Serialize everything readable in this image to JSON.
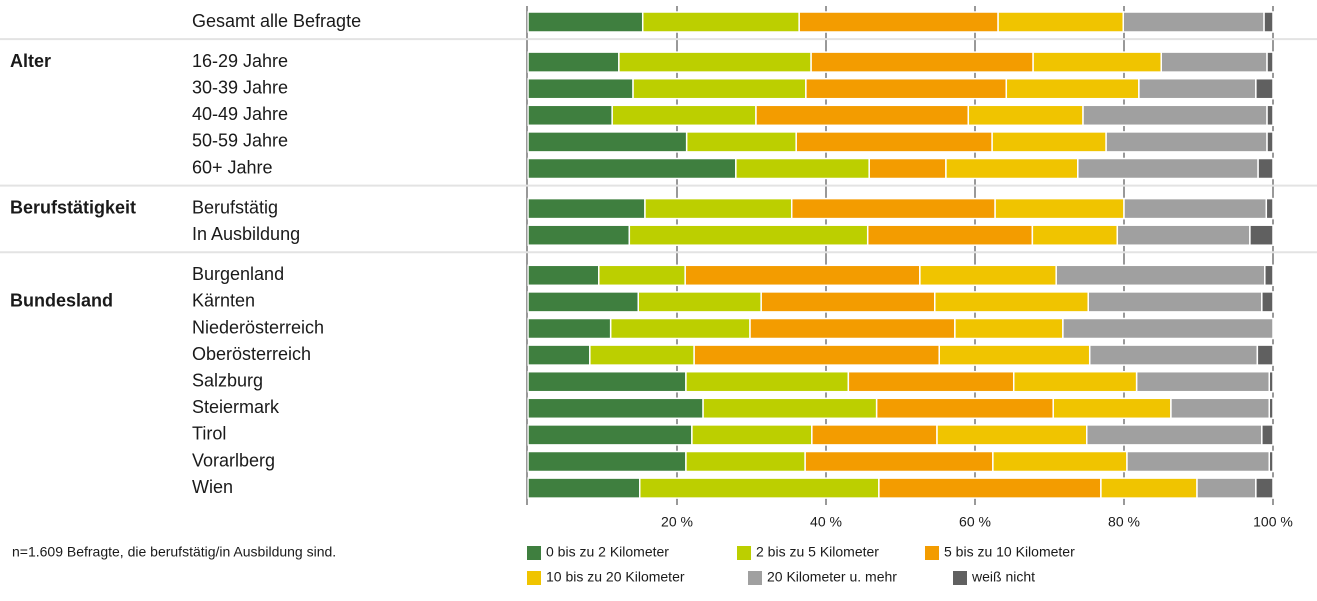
{
  "chart_data": {
    "type": "stacked-barh",
    "note": "n=1.609 Befragte, die berufstätig/in Ausbildung sind.",
    "groups": [
      {
        "label": null,
        "categories": [
          "Gesamt alle Befragte"
        ]
      },
      {
        "label": "Alter",
        "categories": [
          "16-29 Jahre",
          "30-39 Jahre",
          "40-49 Jahre",
          "50-59 Jahre",
          "60+ Jahre"
        ]
      },
      {
        "label": "Berufstätigkeit",
        "categories": [
          "Berufstätig",
          "In Ausbildung"
        ]
      },
      {
        "label": "Bundesland",
        "categories": [
          "Burgenland",
          "Kärnten",
          "Niederösterreich",
          "Oberösterreich",
          "Salzburg",
          "Steiermark",
          "Tirol",
          "Vorarlberg",
          "Wien"
        ]
      }
    ],
    "series": [
      {
        "name": "0 bis zu 2 Kilometer",
        "color": "#3f7f3f",
        "values": [
          15.4,
          12.2,
          14.1,
          11.3,
          21.3,
          27.9,
          15.7,
          13.6,
          9.5,
          14.8,
          11.1,
          8.3,
          21.2,
          23.5,
          22.0,
          21.2,
          15.0
        ]
      },
      {
        "name": "2 bis zu 5 Kilometer",
        "color": "#bccf00",
        "values": [
          21.0,
          25.8,
          23.2,
          19.3,
          14.7,
          17.9,
          19.7,
          32.0,
          11.6,
          16.5,
          18.7,
          14.0,
          21.8,
          23.3,
          16.1,
          16.0,
          32.1
        ]
      },
      {
        "name": "5 bis zu 10 Kilometer",
        "color": "#f39c00",
        "values": [
          26.7,
          29.8,
          26.9,
          28.5,
          26.3,
          10.3,
          27.3,
          22.1,
          31.5,
          23.3,
          27.5,
          32.9,
          22.2,
          23.7,
          16.8,
          25.2,
          29.8
        ]
      },
      {
        "name": "10 bis zu 20 Kilometer",
        "color": "#f0c400",
        "values": [
          16.8,
          17.2,
          17.8,
          15.4,
          15.3,
          17.7,
          17.3,
          11.4,
          18.3,
          20.6,
          14.5,
          20.2,
          16.5,
          15.8,
          20.1,
          18.0,
          12.9
        ]
      },
      {
        "name": "20 Kilometer u. mehr",
        "color": "#a0a0a0",
        "values": [
          18.9,
          14.2,
          15.7,
          24.7,
          21.6,
          24.2,
          19.1,
          17.8,
          28.0,
          23.3,
          28.2,
          22.5,
          17.8,
          13.2,
          23.5,
          19.1,
          7.9
        ]
      },
      {
        "name": "weiß nicht",
        "color": "#606060",
        "values": [
          1.2,
          0.8,
          2.3,
          0.8,
          0.8,
          2.0,
          0.9,
          3.1,
          1.1,
          1.5,
          0,
          2.1,
          0.5,
          0.5,
          1.5,
          0.5,
          2.3
        ]
      }
    ],
    "xlim": [
      0,
      100
    ],
    "xticks": [
      {
        "value": 20,
        "label": "20 %"
      },
      {
        "value": 40,
        "label": "40 %"
      },
      {
        "value": 60,
        "label": "60 %"
      },
      {
        "value": 80,
        "label": "80 %"
      },
      {
        "value": 100,
        "label": "100 %"
      }
    ]
  }
}
